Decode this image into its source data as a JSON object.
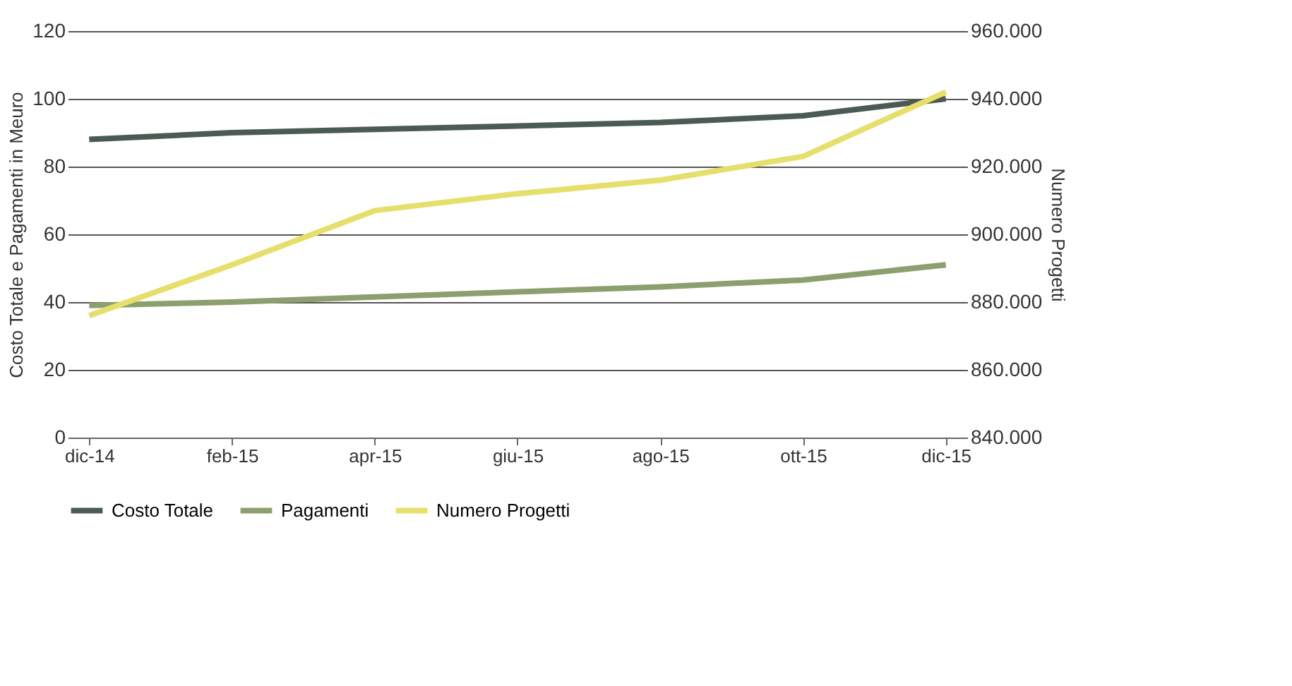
{
  "chart_data": {
    "type": "line",
    "ylabel": "Costo Totale e Pagamenti in Meuro",
    "y2label": "Numero Progetti",
    "categories": [
      "dic-14",
      "feb-15",
      "apr-15",
      "giu-15",
      "ago-15",
      "ott-15",
      "dic-15"
    ],
    "series": [
      {
        "name": "Costo Totale",
        "color": "#4b5b52",
        "values": [
          88,
          90,
          91,
          92,
          93,
          95,
          100
        ]
      },
      {
        "name": "Pagamenti",
        "color": "#8ba06e",
        "values": [
          39,
          40,
          41.5,
          43,
          44.5,
          46.5,
          51
        ]
      },
      {
        "name": "Numero Progetti",
        "color": "#e6df6c",
        "axis": "y2",
        "values": [
          876000,
          891000,
          907000,
          912000,
          916000,
          923000,
          942000
        ]
      }
    ],
    "ylim": [
      0,
      120
    ],
    "yticks": [
      0,
      20,
      40,
      60,
      80,
      100,
      120
    ],
    "y2lim": [
      840000,
      960000
    ],
    "y2ticks": [
      {
        "value": 840000,
        "label": "840.000"
      },
      {
        "value": 860000,
        "label": "860.000"
      },
      {
        "value": 880000,
        "label": "880.000"
      },
      {
        "value": 900000,
        "label": "900.000"
      },
      {
        "value": 920000,
        "label": "920.000"
      },
      {
        "value": 940000,
        "label": "940.000"
      },
      {
        "value": 960000,
        "label": "960.000"
      }
    ],
    "grid": "y",
    "legend": "bottom",
    "marker": "none",
    "line_style": "solid"
  }
}
